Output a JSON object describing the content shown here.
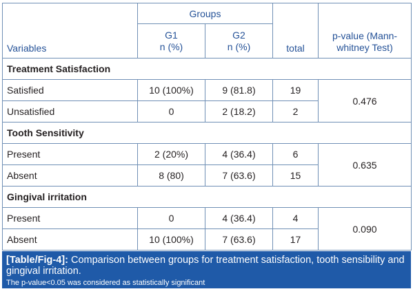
{
  "header": {
    "variables": "Variables",
    "groups": "Groups",
    "g1_line1": "G1",
    "g1_line2": "n (%)",
    "g2_line1": "G2",
    "g2_line2": "n (%)",
    "total": "total",
    "pvalue_line1": "p-value (Mann-",
    "pvalue_line2": "whitney Test)"
  },
  "sections": [
    {
      "title": "Treatment Satisfaction",
      "p_value": "0.476",
      "rows": [
        {
          "label": "Satisfied",
          "g1": "10 (100%)",
          "g2": "9 (81.8)",
          "total": "19"
        },
        {
          "label": "Unsatisfied",
          "g1": "0",
          "g2": "2 (18.2)",
          "total": "2"
        }
      ]
    },
    {
      "title": "Tooth Sensitivity",
      "p_value": "0.635",
      "rows": [
        {
          "label": "Present",
          "g1": "2 (20%)",
          "g2": "4 (36.4)",
          "total": "6"
        },
        {
          "label": "Absent",
          "g1": "8 (80)",
          "g2": "7 (63.6)",
          "total": "15"
        }
      ]
    },
    {
      "title": "Gingival irritation",
      "p_value": "0.090",
      "rows": [
        {
          "label": "Present",
          "g1": "0",
          "g2": "4 (36.4)",
          "total": "4"
        },
        {
          "label": "Absent",
          "g1": "10 (100%)",
          "g2": "7 (63.6)",
          "total": "17"
        }
      ]
    }
  ],
  "caption": {
    "label": "[Table/Fig-4]:",
    "text": " Comparison between groups for treatment satisfaction, tooth sensibility and gingival irritation.",
    "note": "The p-value<0.05 was considered as statistically significant"
  },
  "colors": {
    "header_text": "#245197",
    "border": "#6f8fb5",
    "caption_bg": "#1f5aa8"
  }
}
